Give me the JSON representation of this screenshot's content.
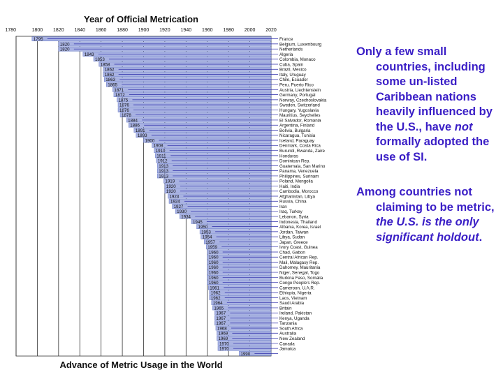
{
  "chart_data": {
    "type": "bar",
    "title": "Year of Official Metrication",
    "xlabel": "Advance of Metric Usage in the World",
    "xlim": [
      1780,
      2020
    ],
    "xticks": [
      1780,
      1800,
      1820,
      1840,
      1860,
      1880,
      1900,
      1920,
      1940,
      1960,
      1980,
      2000,
      2020
    ],
    "grid": true,
    "bar_end": 2020,
    "rows": [
      {
        "year": 1795,
        "year_label": "1795",
        "countries": "France"
      },
      {
        "year": 1820,
        "year_label": "1820",
        "countries": "Belgium, Luxembourg"
      },
      {
        "year": 1820,
        "year_label": "1820",
        "countries": "Netherlands"
      },
      {
        "year": 1843,
        "year_label": "1843",
        "countries": "Algeria"
      },
      {
        "year": 1853,
        "year_label": "1853",
        "countries": "Colombia, Monaco"
      },
      {
        "year": 1858,
        "year_label": "1858",
        "countries": "Cuba, Spain"
      },
      {
        "year": 1862,
        "year_label": "1862",
        "countries": "Brazil, Mexico"
      },
      {
        "year": 1862,
        "year_label": "1862",
        "countries": "Italy, Uruguay"
      },
      {
        "year": 1863,
        "year_label": "1863",
        "countries": "Chile, Ecuador"
      },
      {
        "year": 1865,
        "year_label": "1865",
        "countries": "Peru, Puerto Rico"
      },
      {
        "year": 1871,
        "year_label": "1871",
        "countries": "Austria, Liechtenstein"
      },
      {
        "year": 1872,
        "year_label": "1872",
        "countries": "Germany, Portugal"
      },
      {
        "year": 1875,
        "year_label": "1875",
        "countries": "Norway, Czechoslovakia"
      },
      {
        "year": 1876,
        "year_label": "1876",
        "countries": "Sweden, Switzerland"
      },
      {
        "year": 1876,
        "year_label": "1876",
        "countries": "Hungary, Yugoslavia"
      },
      {
        "year": 1878,
        "year_label": "1878",
        "countries": "Mauritius, Seychelles"
      },
      {
        "year": 1884,
        "year_label": "1884",
        "countries": "El Salvador, Romania"
      },
      {
        "year": 1886,
        "year_label": "1886",
        "countries": "Argentina, Finland"
      },
      {
        "year": 1891,
        "year_label": "1891",
        "countries": "Bolivia, Bulgaria"
      },
      {
        "year": 1893,
        "year_label": "1893",
        "countries": "Nicaragua, Tunisia"
      },
      {
        "year": 1900,
        "year_label": "1900",
        "countries": "Iceland, Paraguay"
      },
      {
        "year": 1908,
        "year_label": "1908",
        "countries": "Denmark, Costa Rica"
      },
      {
        "year": 1910,
        "year_label": "1910",
        "countries": "Burundi, Rwanda, Zaire"
      },
      {
        "year": 1911,
        "year_label": "1911",
        "countries": "Honduras"
      },
      {
        "year": 1912,
        "year_label": "1912",
        "countries": "Dominican Rep."
      },
      {
        "year": 1913,
        "year_label": "1913",
        "countries": "Guatemala, San Marino"
      },
      {
        "year": 1913,
        "year_label": "1913",
        "countries": "Panama, Venezuela"
      },
      {
        "year": 1913,
        "year_label": "1913",
        "countries": "Philippines, Surinam"
      },
      {
        "year": 1919,
        "year_label": "1919",
        "countries": "Poland, Mongolia"
      },
      {
        "year": 1920,
        "year_label": "1920",
        "countries": "Haiti, India"
      },
      {
        "year": 1920,
        "year_label": "1920",
        "countries": "Cambodia, Morocco"
      },
      {
        "year": 1923,
        "year_label": "1923",
        "countries": "Afghanistan, Libya"
      },
      {
        "year": 1924,
        "year_label": "1924",
        "countries": "Russia, China"
      },
      {
        "year": 1927,
        "year_label": "1927",
        "countries": "Iran"
      },
      {
        "year": 1930,
        "year_label": "1930",
        "countries": "Iraq, Turkey"
      },
      {
        "year": 1934,
        "year_label": "1934",
        "countries": "Lebanon, Syria"
      },
      {
        "year": 1945,
        "year_label": "1945",
        "countries": "Indonesia, Thailand"
      },
      {
        "year": 1950,
        "year_label": "1950",
        "countries": "Albania, Korea, Israel"
      },
      {
        "year": 1953,
        "year_label": "1953",
        "countries": "Jordan, Taiwan"
      },
      {
        "year": 1954,
        "year_label": "1954",
        "countries": "Libya, Sudan"
      },
      {
        "year": 1957,
        "year_label": "1957",
        "countries": "Japan, Greece"
      },
      {
        "year": 1959,
        "year_label": "1959",
        "countries": "Ivory Coast, Guinea"
      },
      {
        "year": 1960,
        "year_label": "1960",
        "countries": "Chad, Gabon"
      },
      {
        "year": 1960,
        "year_label": "1960",
        "countries": "Central African Rep."
      },
      {
        "year": 1960,
        "year_label": "1960",
        "countries": "Mali, Malagasy Rep."
      },
      {
        "year": 1960,
        "year_label": "1960",
        "countries": "Dahomey, Mauritania"
      },
      {
        "year": 1960,
        "year_label": "1960",
        "countries": "Niger, Senegal, Togo"
      },
      {
        "year": 1960,
        "year_label": "1960",
        "countries": "Burkina Faso, Somalia"
      },
      {
        "year": 1960,
        "year_label": "1960",
        "countries": "Congo People's Rep."
      },
      {
        "year": 1961,
        "year_label": "1961",
        "countries": "Cameroon, U.A.R."
      },
      {
        "year": 1962,
        "year_label": "1962",
        "countries": "Ethiopia, Nigeria"
      },
      {
        "year": 1962,
        "year_label": "1962",
        "countries": "Laos, Vietnam"
      },
      {
        "year": 1964,
        "year_label": "1964",
        "countries": "Saudi Arabia"
      },
      {
        "year": 1965,
        "year_label": "1965",
        "countries": "Britain"
      },
      {
        "year": 1967,
        "year_label": "1967",
        "countries": "Ireland, Pakistan"
      },
      {
        "year": 1967,
        "year_label": "1967",
        "countries": "Kenya, Uganda"
      },
      {
        "year": 1967,
        "year_label": "1967",
        "countries": "Tanzania"
      },
      {
        "year": 1968,
        "year_label": "1968",
        "countries": "South Africa"
      },
      {
        "year": 1969,
        "year_label": "1969",
        "countries": "Australia"
      },
      {
        "year": 1969,
        "year_label": "1969",
        "countries": "New Zealand"
      },
      {
        "year": 1970,
        "year_label": "1970",
        "countries": "Canada"
      },
      {
        "year": 1970,
        "year_label": "1970",
        "countries": "Jamaica"
      },
      {
        "year": 1990,
        "year_label": "1990",
        "countries": ""
      }
    ]
  },
  "text_panel": {
    "para1": {
      "before": "Only a few small countries, including some un-listed Caribbean nations heavily influenced by the U.S., have ",
      "em": "not",
      "after": " formally adopted the use of SI."
    },
    "para2": {
      "before": "Among countries not claiming to be metric, ",
      "em": "the U.S. is the only significant holdout",
      "after": "."
    }
  },
  "colors": {
    "bar_fill": "#a8b2e2",
    "bar_stroke": "#6c7ec8",
    "tick_connector": "#2a2aa8",
    "grid": "#333333",
    "text_panel": "#3a1ec6"
  }
}
